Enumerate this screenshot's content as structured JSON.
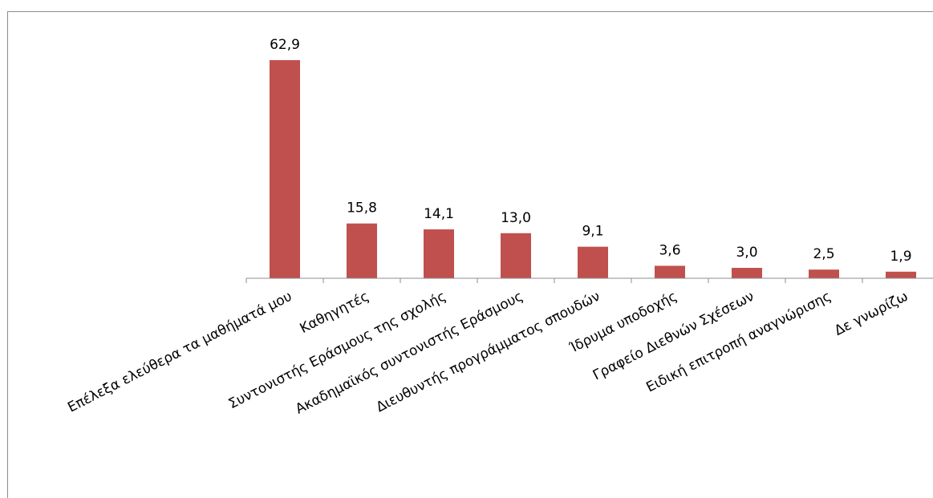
{
  "chart_data": {
    "type": "bar",
    "categories": [
      "Επέλεξα ελεύθερα τα μαθήματά μου",
      "Καθηγητές",
      "Συντονιστής Εράσμους της σχολής",
      "Ακαδημαϊκός συντονιστής Εράσμους",
      "Διευθυντής προγράμματος σπουδών",
      "Ίδρυμα υποδοχής",
      "Γραφείο Διεθνών Σχέσεων",
      "Ειδική επιτροπή αναγνώρισης",
      "Δε γνωρίζω"
    ],
    "values": [
      62.9,
      15.8,
      14.1,
      13.0,
      9.1,
      3.6,
      3.0,
      2.5,
      1.9
    ],
    "value_labels": [
      "62,9",
      "15,8",
      "14,1",
      "13,0",
      "9,1",
      "3,6",
      "3,0",
      "2,5",
      "1,9"
    ],
    "ylim": [
      0,
      70
    ],
    "grid": false,
    "bar_color": "#c0504d"
  }
}
